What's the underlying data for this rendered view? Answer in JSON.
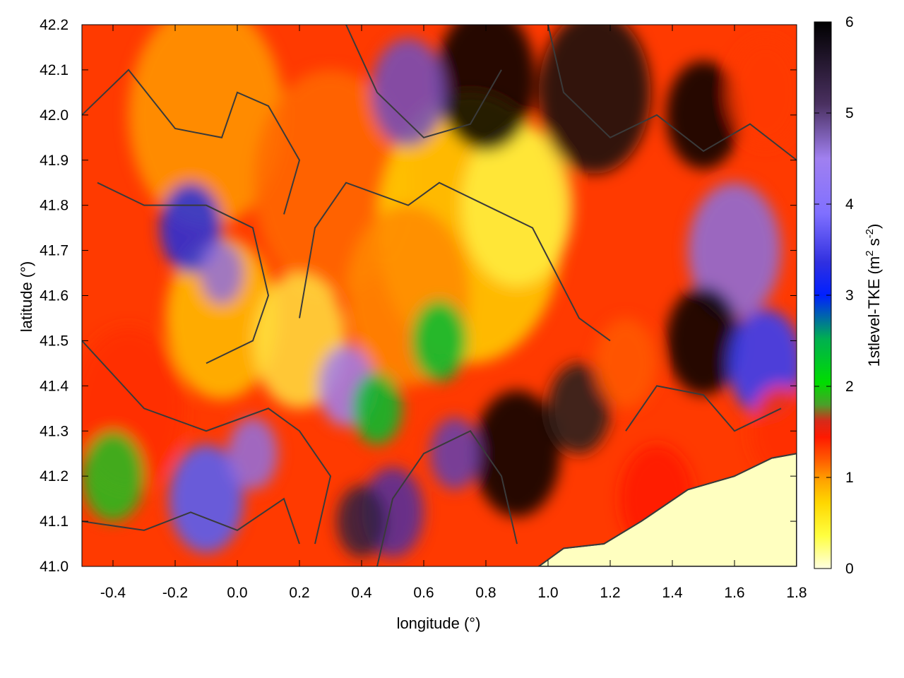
{
  "chart_data": {
    "type": "heatmap",
    "title": "",
    "xlabel": "longitude (°)",
    "ylabel": "latitude (°)",
    "xlim": [
      -0.5,
      1.8
    ],
    "ylim": [
      41.0,
      42.2
    ],
    "xticks": [
      "-0.4",
      "-0.2",
      "0.0",
      "0.2",
      "0.4",
      "0.6",
      "0.8",
      "1.0",
      "1.2",
      "1.4",
      "1.6",
      "1.8"
    ],
    "yticks": [
      "41.0",
      "41.1",
      "41.2",
      "41.3",
      "41.4",
      "41.5",
      "41.6",
      "41.7",
      "41.8",
      "41.9",
      "42.0",
      "42.1",
      "42.2"
    ],
    "colorbar": {
      "label": "1stlevel-TKE (m² s⁻²)",
      "label_main": "1stlevel-TKE (m",
      "label_sup1": "2",
      "label_mid": " s",
      "label_sup2": "-2",
      "label_end": ")",
      "range": [
        0,
        6
      ],
      "ticks": [
        "0",
        "1",
        "2",
        "3",
        "4",
        "5",
        "6"
      ],
      "palette": [
        [
          0.0,
          "#ffffe0"
        ],
        [
          0.06,
          "#ffff40"
        ],
        [
          0.12,
          "#ffd700"
        ],
        [
          0.16,
          "#ffa500"
        ],
        [
          0.2,
          "#ff5a00"
        ],
        [
          0.24,
          "#ff1a00"
        ],
        [
          0.27,
          "#d62a1a"
        ],
        [
          0.3,
          "#4aa02a"
        ],
        [
          0.34,
          "#00dd00"
        ],
        [
          0.42,
          "#00b050"
        ],
        [
          0.5,
          "#0020ff"
        ],
        [
          0.56,
          "#3030e0"
        ],
        [
          0.65,
          "#8070ff"
        ],
        [
          0.75,
          "#a080f0"
        ],
        [
          0.85,
          "#4a3060"
        ],
        [
          1.0,
          "#000000"
        ]
      ]
    },
    "grid": false,
    "field_description_regions": [
      {
        "area": "northwest",
        "tke_level": "low-moderate"
      },
      {
        "area": "center",
        "tke_level": "low"
      },
      {
        "area": "northeast",
        "tke_level": "high"
      },
      {
        "area": "southwest",
        "tke_level": "moderate-high"
      },
      {
        "area": "southeast_sea",
        "tke_level": "near zero"
      }
    ]
  }
}
